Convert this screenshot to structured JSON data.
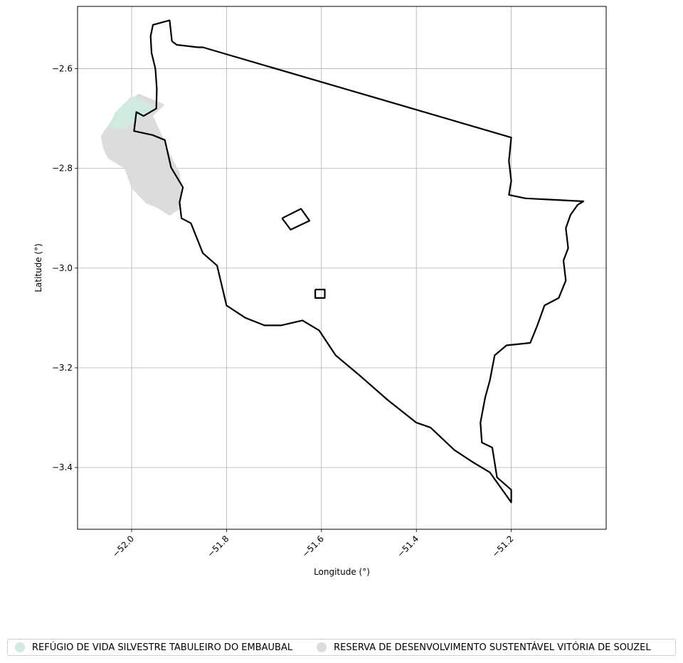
{
  "axes": {
    "xlabel": "Longitude (°)",
    "ylabel": "Latitude (°)",
    "xlim": [
      -52.114,
      -51.0
    ],
    "ylim": [
      -3.524,
      -2.475
    ],
    "x_ticks": [
      -52.0,
      -51.8,
      -51.6,
      -51.4,
      -51.2
    ],
    "x_tick_labels": [
      "−52.0",
      "−51.8",
      "−51.6",
      "−51.4",
      "−51.2"
    ],
    "y_ticks": [
      -2.6,
      -2.8,
      -3.0,
      -3.2,
      -3.4
    ],
    "y_tick_labels": [
      "−2.6",
      "−2.8",
      "−3.0",
      "−3.2",
      "−3.4"
    ],
    "grid": true
  },
  "legend": {
    "placement": "bottom",
    "items": [
      {
        "label": "REFÚGIO DE VIDA SILVESTRE TABULEIRO DO EMBAUBAL",
        "color": "#cfeadf"
      },
      {
        "label": "RESERVA DE DESENVOLVIMENTO SUSTENTÁVEL VITÓRIA DE SOUZEL",
        "color": "#dcdcdc"
      }
    ]
  },
  "map_data": {
    "outline_color": "#000000",
    "municipality_outline": [
      [
        -51.915,
        -2.545
      ],
      [
        -51.92,
        -2.503
      ],
      [
        -51.955,
        -2.512
      ],
      [
        -51.96,
        -2.535
      ],
      [
        -51.958,
        -2.568
      ],
      [
        -51.95,
        -2.6
      ],
      [
        -51.947,
        -2.64
      ],
      [
        -51.948,
        -2.68
      ],
      [
        -51.975,
        -2.695
      ],
      [
        -51.99,
        -2.687
      ],
      [
        -51.995,
        -2.725
      ],
      [
        -51.956,
        -2.733
      ],
      [
        -51.93,
        -2.743
      ],
      [
        -51.917,
        -2.798
      ],
      [
        -51.892,
        -2.838
      ],
      [
        -51.899,
        -2.868
      ],
      [
        -51.895,
        -2.9
      ],
      [
        -51.875,
        -2.91
      ],
      [
        -51.85,
        -2.97
      ],
      [
        -51.82,
        -2.995
      ],
      [
        -51.8,
        -3.075
      ],
      [
        -51.76,
        -3.1
      ],
      [
        -51.72,
        -3.115
      ],
      [
        -51.685,
        -3.115
      ],
      [
        -51.64,
        -3.105
      ],
      [
        -51.605,
        -3.125
      ],
      [
        -51.57,
        -3.175
      ],
      [
        -51.52,
        -3.215
      ],
      [
        -51.46,
        -3.265
      ],
      [
        -51.4,
        -3.31
      ],
      [
        -51.37,
        -3.32
      ],
      [
        -51.32,
        -3.365
      ],
      [
        -51.28,
        -3.39
      ],
      [
        -51.245,
        -3.41
      ],
      [
        -51.2,
        -3.47
      ],
      [
        -51.2,
        -3.445
      ],
      [
        -51.23,
        -3.42
      ],
      [
        -51.24,
        -3.36
      ],
      [
        -51.262,
        -3.35
      ],
      [
        -51.265,
        -3.31
      ],
      [
        -51.255,
        -3.26
      ],
      [
        -51.245,
        -3.225
      ],
      [
        -51.235,
        -3.175
      ],
      [
        -51.21,
        -3.155
      ],
      [
        -51.16,
        -3.15
      ],
      [
        -51.145,
        -3.115
      ],
      [
        -51.13,
        -3.075
      ],
      [
        -51.1,
        -3.06
      ],
      [
        -51.085,
        -3.025
      ],
      [
        -51.09,
        -2.985
      ],
      [
        -51.08,
        -2.96
      ],
      [
        -51.085,
        -2.92
      ],
      [
        -51.075,
        -2.893
      ],
      [
        -51.06,
        -2.873
      ],
      [
        -51.048,
        -2.866
      ],
      [
        -51.17,
        -2.86
      ],
      [
        -51.205,
        -2.853
      ],
      [
        -51.2,
        -2.825
      ],
      [
        -51.205,
        -2.785
      ],
      [
        -51.2,
        -2.738
      ],
      [
        -51.85,
        -2.557
      ],
      [
        -51.86,
        -2.557
      ],
      [
        -51.905,
        -2.552
      ],
      [
        -51.915,
        -2.545
      ]
    ],
    "enclosed_area_a": [
      [
        -51.683,
        -2.9
      ],
      [
        -51.665,
        -2.923
      ],
      [
        -51.625,
        -2.905
      ],
      [
        -51.643,
        -2.881
      ],
      [
        -51.683,
        -2.9
      ]
    ],
    "enclosed_area_b": [
      [
        -51.613,
        -3.043
      ],
      [
        -51.593,
        -3.043
      ],
      [
        -51.593,
        -3.06
      ],
      [
        -51.613,
        -3.06
      ],
      [
        -51.613,
        -3.043
      ]
    ],
    "reserva_area": [
      [
        -52.065,
        -2.735
      ],
      [
        -52.04,
        -2.7
      ],
      [
        -52.01,
        -2.665
      ],
      [
        -51.985,
        -2.65
      ],
      [
        -51.93,
        -2.672
      ],
      [
        -51.955,
        -2.695
      ],
      [
        -51.94,
        -2.725
      ],
      [
        -51.925,
        -2.76
      ],
      [
        -51.898,
        -2.81
      ],
      [
        -51.895,
        -2.855
      ],
      [
        -51.9,
        -2.882
      ],
      [
        -51.92,
        -2.895
      ],
      [
        -51.945,
        -2.88
      ],
      [
        -51.97,
        -2.87
      ],
      [
        -52.0,
        -2.84
      ],
      [
        -52.015,
        -2.8
      ],
      [
        -52.05,
        -2.78
      ],
      [
        -52.06,
        -2.76
      ],
      [
        -52.065,
        -2.735
      ]
    ],
    "refugio_area": [
      [
        -52.05,
        -2.72
      ],
      [
        -52.035,
        -2.688
      ],
      [
        -52.0,
        -2.655
      ],
      [
        -51.975,
        -2.665
      ],
      [
        -51.945,
        -2.68
      ],
      [
        -51.985,
        -2.7
      ],
      [
        -52.015,
        -2.72
      ],
      [
        -52.05,
        -2.72
      ]
    ]
  }
}
